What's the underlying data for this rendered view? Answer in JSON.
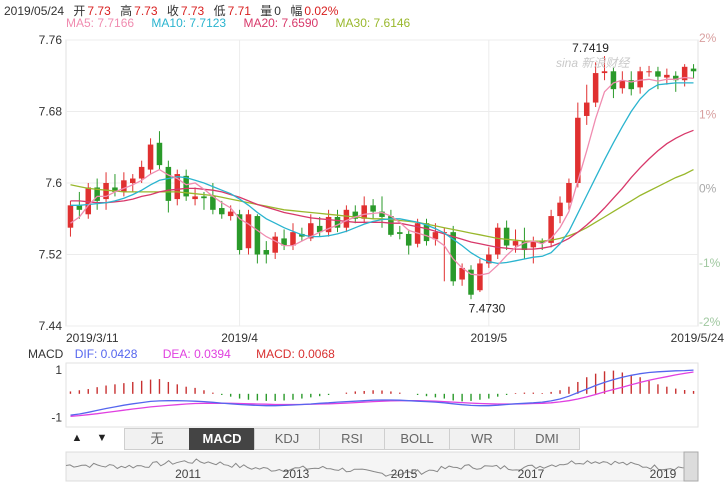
{
  "info": {
    "date": "2019/05/24",
    "open_label": "开",
    "open": "7.73",
    "high_label": "高",
    "high": "7.73",
    "close_label": "收",
    "close": "7.73",
    "low_label": "低",
    "low": "7.71",
    "volume_label": "量",
    "volume": "0",
    "change_label": "幅",
    "change": "0.02%"
  },
  "ma_legend": [
    {
      "label": "MA5: 7.7166",
      "color": "#f08cb0"
    },
    {
      "label": "MA10: 7.7123",
      "color": "#2ab4cf"
    },
    {
      "label": "MA20: 7.6590",
      "color": "#d8386a"
    },
    {
      "label": "MA30: 7.6146",
      "color": "#99b82c"
    }
  ],
  "watermark": "sina 新浪财经",
  "macd_legend": {
    "title": "MACD",
    "dif": "DIF: 0.0428",
    "dif_color": "#5566ee",
    "dea": "DEA: 0.0394",
    "dea_color": "#e040e0",
    "macd": "MACD: 0.0068",
    "macd_color": "#d83030"
  },
  "tabs": [
    "无",
    "MACD",
    "KDJ",
    "RSI",
    "BOLL",
    "WR",
    "DMI"
  ],
  "active_tab": "MACD",
  "nav": {
    "up": "▲",
    "down": "▼"
  },
  "overview_years": [
    "2011",
    "2013",
    "2015",
    "2017",
    "2019"
  ],
  "chart_data": [
    {
      "type": "candlestick",
      "y_ticks": [
        "7.76",
        "7.68",
        "7.6",
        "7.52",
        "7.44"
      ],
      "ylim": [
        7.44,
        7.76
      ],
      "pct_ticks": [
        "2%",
        "1%",
        "0%",
        "-1%",
        "-2%"
      ],
      "x_ticks": [
        "2019/3/11",
        "2019/4",
        "2019/5",
        "2019/5/24"
      ],
      "annotations": [
        {
          "text": "7.7419",
          "value": 7.7419
        },
        {
          "text": "7.4730",
          "value": 7.473
        }
      ],
      "candles": [
        [
          7.55,
          7.575,
          7.58,
          7.54
        ],
        [
          7.575,
          7.57,
          7.59,
          7.56
        ],
        [
          7.565,
          7.595,
          7.6,
          7.56
        ],
        [
          7.595,
          7.58,
          7.605,
          7.57
        ],
        [
          7.582,
          7.6,
          7.612,
          7.57
        ],
        [
          7.595,
          7.59,
          7.61,
          7.585
        ],
        [
          7.59,
          7.603,
          7.612,
          7.585
        ],
        [
          7.6,
          7.605,
          7.61,
          7.59
        ],
        [
          7.605,
          7.618,
          7.625,
          7.6
        ],
        [
          7.615,
          7.643,
          7.65,
          7.61
        ],
        [
          7.645,
          7.62,
          7.658,
          7.615
        ],
        [
          7.618,
          7.58,
          7.625,
          7.567
        ],
        [
          7.582,
          7.61,
          7.615,
          7.575
        ],
        [
          7.608,
          7.585,
          7.615,
          7.58
        ],
        [
          7.582,
          7.585,
          7.595,
          7.575
        ],
        [
          7.585,
          7.583,
          7.59,
          7.57
        ],
        [
          7.585,
          7.57,
          7.6,
          7.565
        ],
        [
          7.572,
          7.565,
          7.58,
          7.56
        ],
        [
          7.563,
          7.568,
          7.575,
          7.558
        ],
        [
          7.565,
          7.525,
          7.57,
          7.52
        ],
        [
          7.527,
          7.565,
          7.57,
          7.52
        ],
        [
          7.563,
          7.52,
          7.565,
          7.51
        ],
        [
          7.525,
          7.52,
          7.535,
          7.51
        ],
        [
          7.522,
          7.54,
          7.545,
          7.515
        ],
        [
          7.538,
          7.53,
          7.548,
          7.525
        ],
        [
          7.53,
          7.545,
          7.555,
          7.525
        ],
        [
          7.543,
          7.54,
          7.55,
          7.535
        ],
        [
          7.538,
          7.555,
          7.565,
          7.535
        ],
        [
          7.552,
          7.545,
          7.562,
          7.54
        ],
        [
          7.545,
          7.562,
          7.57,
          7.54
        ],
        [
          7.562,
          7.55,
          7.57,
          7.545
        ],
        [
          7.55,
          7.57,
          7.575,
          7.545
        ],
        [
          7.568,
          7.56,
          7.575,
          7.555
        ],
        [
          7.56,
          7.575,
          7.585,
          7.555
        ],
        [
          7.575,
          7.568,
          7.582,
          7.56
        ],
        [
          7.568,
          7.562,
          7.585,
          7.55
        ],
        [
          7.563,
          7.542,
          7.57,
          7.54
        ],
        [
          7.545,
          7.543,
          7.552,
          7.537
        ],
        [
          7.543,
          7.53,
          7.548,
          7.52
        ],
        [
          7.532,
          7.555,
          7.56,
          7.528
        ],
        [
          7.555,
          7.535,
          7.56,
          7.53
        ],
        [
          7.537,
          7.545,
          7.555,
          7.53
        ],
        [
          7.545,
          7.545,
          7.55,
          7.49
        ],
        [
          7.545,
          7.49,
          7.552,
          7.485
        ],
        [
          7.492,
          7.505,
          7.51,
          7.485
        ],
        [
          7.503,
          7.475,
          7.508,
          7.47
        ],
        [
          7.48,
          7.51,
          7.515,
          7.478
        ],
        [
          7.51,
          7.52,
          7.528,
          7.505
        ],
        [
          7.52,
          7.55,
          7.555,
          7.515
        ],
        [
          7.55,
          7.53,
          7.558,
          7.525
        ],
        [
          7.53,
          7.535,
          7.548,
          7.522
        ],
        [
          7.535,
          7.525,
          7.55,
          7.515
        ],
        [
          7.528,
          7.535,
          7.54,
          7.51
        ],
        [
          7.535,
          7.533,
          7.538,
          7.525
        ],
        [
          7.533,
          7.563,
          7.57,
          7.528
        ],
        [
          7.563,
          7.578,
          7.585,
          7.555
        ],
        [
          7.578,
          7.6,
          7.605,
          7.57
        ],
        [
          7.6,
          7.673,
          7.69,
          7.595
        ],
        [
          7.675,
          7.69,
          7.71,
          7.665
        ],
        [
          7.69,
          7.723,
          7.735,
          7.685
        ],
        [
          7.723,
          7.725,
          7.742,
          7.715
        ],
        [
          7.725,
          7.705,
          7.73,
          7.695
        ],
        [
          7.706,
          7.715,
          7.725,
          7.7
        ],
        [
          7.715,
          7.705,
          7.725,
          7.698
        ],
        [
          7.707,
          7.725,
          7.73,
          7.7
        ],
        [
          7.725,
          7.725,
          7.731,
          7.719
        ],
        [
          7.725,
          7.719,
          7.73,
          7.705
        ],
        [
          7.718,
          7.721,
          7.728,
          7.71
        ],
        [
          7.72,
          7.715,
          7.725,
          7.702
        ],
        [
          7.715,
          7.73,
          7.733,
          7.708
        ],
        [
          7.728,
          7.725,
          7.733,
          7.717
        ]
      ],
      "ma5": [
        7.555,
        7.562,
        7.575,
        7.585,
        7.585,
        7.59,
        7.594,
        7.598,
        7.603,
        7.61,
        7.615,
        7.609,
        7.605,
        7.598,
        7.6,
        7.593,
        7.585,
        7.578,
        7.572,
        7.56,
        7.554,
        7.547,
        7.54,
        7.535,
        7.53,
        7.53,
        7.535,
        7.54,
        7.545,
        7.549,
        7.553,
        7.558,
        7.562,
        7.565,
        7.566,
        7.567,
        7.563,
        7.556,
        7.547,
        7.544,
        7.541,
        7.537,
        7.53,
        7.515,
        7.505,
        7.498,
        7.497,
        7.499,
        7.508,
        7.519,
        7.528,
        7.533,
        7.535,
        7.532,
        7.538,
        7.55,
        7.568,
        7.602,
        7.636,
        7.672,
        7.702,
        7.712,
        7.715,
        7.713,
        7.715,
        7.716,
        7.714,
        7.716,
        7.716,
        7.718,
        7.717
      ],
      "ma10": [
        7.575,
        7.575,
        7.576,
        7.577,
        7.578,
        7.58,
        7.583,
        7.587,
        7.592,
        7.598,
        7.603,
        7.605,
        7.607,
        7.606,
        7.603,
        7.6,
        7.596,
        7.592,
        7.588,
        7.582,
        7.575,
        7.567,
        7.56,
        7.555,
        7.55,
        7.546,
        7.542,
        7.54,
        7.54,
        7.541,
        7.543,
        7.546,
        7.55,
        7.554,
        7.557,
        7.559,
        7.56,
        7.56,
        7.558,
        7.556,
        7.553,
        7.549,
        7.544,
        7.537,
        7.53,
        7.522,
        7.516,
        7.512,
        7.51,
        7.511,
        7.513,
        7.515,
        7.517,
        7.518,
        7.522,
        7.532,
        7.546,
        7.566,
        7.586,
        7.606,
        7.626,
        7.645,
        7.663,
        7.68,
        7.694,
        7.704,
        7.71,
        7.711,
        7.712,
        7.712,
        7.712
      ],
      "ma20": [
        7.58,
        7.58,
        7.579,
        7.578,
        7.578,
        7.579,
        7.58,
        7.582,
        7.585,
        7.587,
        7.59,
        7.592,
        7.593,
        7.594,
        7.594,
        7.593,
        7.592,
        7.59,
        7.587,
        7.584,
        7.58,
        7.576,
        7.573,
        7.57,
        7.567,
        7.565,
        7.563,
        7.561,
        7.56,
        7.559,
        7.558,
        7.557,
        7.556,
        7.556,
        7.556,
        7.556,
        7.555,
        7.555,
        7.553,
        7.551,
        7.549,
        7.546,
        7.543,
        7.54,
        7.537,
        7.534,
        7.532,
        7.53,
        7.528,
        7.527,
        7.526,
        7.526,
        7.526,
        7.527,
        7.529,
        7.533,
        7.538,
        7.545,
        7.553,
        7.562,
        7.572,
        7.583,
        7.594,
        7.606,
        7.617,
        7.627,
        7.636,
        7.644,
        7.65,
        7.655,
        7.659
      ],
      "ma30": [
        7.598,
        7.596,
        7.594,
        7.593,
        7.592,
        7.591,
        7.59,
        7.59,
        7.59,
        7.59,
        7.59,
        7.59,
        7.59,
        7.589,
        7.588,
        7.587,
        7.586,
        7.584,
        7.582,
        7.58,
        7.578,
        7.576,
        7.574,
        7.572,
        7.57,
        7.569,
        7.568,
        7.567,
        7.566,
        7.565,
        7.564,
        7.563,
        7.562,
        7.561,
        7.56,
        7.56,
        7.559,
        7.558,
        7.557,
        7.556,
        7.554,
        7.552,
        7.55,
        7.548,
        7.546,
        7.544,
        7.542,
        7.54,
        7.538,
        7.537,
        7.536,
        7.535,
        7.535,
        7.535,
        7.536,
        7.538,
        7.541,
        7.545,
        7.55,
        7.556,
        7.562,
        7.568,
        7.574,
        7.58,
        7.586,
        7.591,
        7.596,
        7.601,
        7.606,
        7.61,
        7.615
      ]
    },
    {
      "type": "macd",
      "y_ticks": [
        "1",
        "-1"
      ],
      "ylim": [
        -1.4,
        1.3
      ],
      "hist": [
        0.1,
        0.15,
        0.2,
        0.28,
        0.35,
        0.4,
        0.45,
        0.5,
        0.55,
        0.6,
        0.62,
        0.5,
        0.4,
        0.3,
        0.25,
        0.15,
        0.05,
        -0.05,
        -0.12,
        -0.2,
        -0.25,
        -0.28,
        -0.3,
        -0.3,
        -0.28,
        -0.25,
        -0.2,
        -0.15,
        -0.1,
        -0.05,
        0.0,
        0.05,
        0.1,
        0.12,
        0.15,
        0.14,
        0.1,
        0.05,
        0.0,
        -0.05,
        -0.1,
        -0.15,
        -0.2,
        -0.28,
        -0.32,
        -0.3,
        -0.25,
        -0.2,
        -0.12,
        -0.05,
        0.03,
        0.05,
        0.05,
        0.03,
        0.08,
        0.15,
        0.3,
        0.5,
        0.7,
        0.85,
        0.95,
        0.98,
        0.9,
        0.8,
        0.7,
        0.55,
        0.4,
        0.3,
        0.22,
        0.16,
        0.12
      ],
      "dif": [
        -0.9,
        -0.85,
        -0.78,
        -0.7,
        -0.62,
        -0.55,
        -0.48,
        -0.42,
        -0.37,
        -0.32,
        -0.3,
        -0.29,
        -0.29,
        -0.3,
        -0.31,
        -0.33,
        -0.36,
        -0.39,
        -0.42,
        -0.45,
        -0.47,
        -0.49,
        -0.5,
        -0.5,
        -0.49,
        -0.47,
        -0.45,
        -0.43,
        -0.4,
        -0.38,
        -0.35,
        -0.33,
        -0.31,
        -0.29,
        -0.27,
        -0.26,
        -0.26,
        -0.27,
        -0.29,
        -0.31,
        -0.33,
        -0.35,
        -0.38,
        -0.42,
        -0.46,
        -0.49,
        -0.5,
        -0.5,
        -0.48,
        -0.45,
        -0.42,
        -0.4,
        -0.38,
        -0.35,
        -0.3,
        -0.22,
        -0.1,
        0.05,
        0.2,
        0.35,
        0.48,
        0.6,
        0.7,
        0.78,
        0.85,
        0.9,
        0.93,
        0.95,
        0.97,
        0.98,
        1.0
      ],
      "dea": [
        -0.95,
        -0.92,
        -0.88,
        -0.84,
        -0.79,
        -0.74,
        -0.69,
        -0.64,
        -0.6,
        -0.55,
        -0.52,
        -0.49,
        -0.46,
        -0.43,
        -0.41,
        -0.4,
        -0.4,
        -0.4,
        -0.4,
        -0.41,
        -0.42,
        -0.43,
        -0.44,
        -0.45,
        -0.45,
        -0.45,
        -0.45,
        -0.44,
        -0.43,
        -0.42,
        -0.41,
        -0.39,
        -0.37,
        -0.35,
        -0.33,
        -0.31,
        -0.3,
        -0.29,
        -0.29,
        -0.29,
        -0.3,
        -0.31,
        -0.33,
        -0.35,
        -0.37,
        -0.39,
        -0.41,
        -0.42,
        -0.43,
        -0.43,
        -0.43,
        -0.42,
        -0.41,
        -0.4,
        -0.38,
        -0.34,
        -0.29,
        -0.22,
        -0.13,
        -0.03,
        0.08,
        0.18,
        0.28,
        0.38,
        0.48,
        0.57,
        0.65,
        0.72,
        0.8,
        0.86,
        0.92
      ]
    }
  ]
}
